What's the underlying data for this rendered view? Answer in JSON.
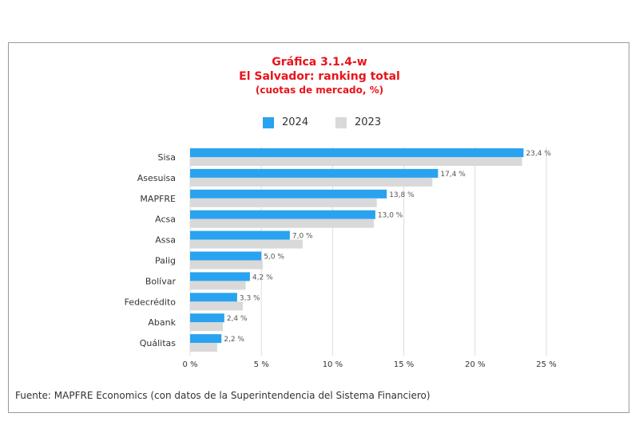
{
  "colors": {
    "series_2024": "#29a3f0",
    "series_2023": "#d9d9d9",
    "title": "#e8141b",
    "grid": "#dddddd",
    "text": "#333333",
    "value_text": "#555555"
  },
  "header": {
    "title_line1": "Gráfica 3.1.4-w",
    "title_line2": "El Salvador: ranking total",
    "title_line3": "(cuotas de mercado, %)"
  },
  "legend": {
    "label_2024": "2024",
    "label_2023": "2023"
  },
  "footer": {
    "source": "Fuente: MAPFRE Economics (con datos de la Superintendencia del Sistema Financiero)"
  },
  "chart_data": {
    "type": "bar",
    "orientation": "horizontal",
    "title": "Gráfica 3.1.4-w El Salvador: ranking total (cuotas de mercado, %)",
    "categories": [
      "Sisa",
      "Asesuisa",
      "MAPFRE",
      "Acsa",
      "Assa",
      "Palig",
      "Bolívar",
      "Fedecrédito",
      "Abank",
      "Quálitas"
    ],
    "series": [
      {
        "name": "2024",
        "values": [
          23.4,
          17.4,
          13.8,
          13.0,
          7.0,
          5.0,
          4.2,
          3.3,
          2.4,
          2.2
        ],
        "labels": [
          "23,4 %",
          "17,4 %",
          "13,8 %",
          "13,0 %",
          "7,0 %",
          "5,0 %",
          "4,2 %",
          "3,3 %",
          "2,4 %",
          "2,2 %"
        ]
      },
      {
        "name": "2023",
        "values": [
          23.3,
          17.0,
          13.1,
          12.9,
          7.9,
          5.1,
          3.9,
          3.7,
          2.3,
          1.9
        ]
      }
    ],
    "xlim": [
      0,
      25
    ],
    "xticks": [
      0,
      5,
      10,
      15,
      20,
      25
    ],
    "xtick_labels": [
      "0 %",
      "5 %",
      "10 %",
      "15 %",
      "20 %",
      "25 %"
    ],
    "grid": true,
    "legend_position": "top-center"
  }
}
